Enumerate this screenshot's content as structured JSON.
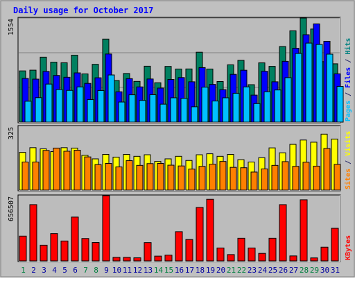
{
  "chart_data": [
    {
      "type": "bar",
      "title": "Daily usage for October 2017",
      "ylabel_parts": [
        {
          "text": "Pages",
          "color": "#00c0ff"
        },
        {
          "text": " / ",
          "color": "#2a2a6a"
        },
        {
          "text": "Files",
          "color": "#0000ff"
        },
        {
          "text": " / ",
          "color": "#2a2a6a"
        },
        {
          "text": "Hits",
          "color": "#008080"
        }
      ],
      "ymax_label": "1554",
      "ylim": [
        0,
        1554
      ],
      "categories": [
        "1",
        "2",
        "3",
        "4",
        "5",
        "6",
        "7",
        "8",
        "9",
        "10",
        "11",
        "12",
        "13",
        "14",
        "15",
        "16",
        "17",
        "18",
        "19",
        "20",
        "21",
        "22",
        "23",
        "24",
        "25",
        "26",
        "27",
        "28",
        "29",
        "30",
        "31"
      ],
      "series": [
        {
          "name": "Hits",
          "color": "#008060",
          "values": [
            765,
            776,
            970,
            895,
            886,
            1000,
            720,
            863,
            1240,
            621,
            726,
            608,
            835,
            588,
            832,
            793,
            794,
            1044,
            793,
            606,
            856,
            922,
            559,
            885,
            833,
            1129,
            1364,
            1554,
            1390,
            903,
            871
          ]
        },
        {
          "name": "Files",
          "color": "#0000ff",
          "values": [
            652,
            642,
            757,
            697,
            670,
            735,
            578,
            662,
            1017,
            453,
            649,
            526,
            644,
            508,
            637,
            665,
            602,
            814,
            563,
            485,
            713,
            775,
            403,
            759,
            602,
            908,
            1103,
            1305,
            1467,
            1207,
            721
          ]
        },
        {
          "name": "Pages",
          "color": "#00c0ff",
          "values": [
            312,
            365,
            568,
            486,
            474,
            526,
            336,
            472,
            704,
            300,
            408,
            324,
            409,
            268,
            363,
            355,
            229,
            522,
            315,
            363,
            431,
            526,
            277,
            453,
            480,
            664,
            1025,
            1180,
            1159,
            1015,
            533
          ]
        }
      ]
    },
    {
      "type": "bar",
      "ylabel_parts": [
        {
          "text": "Sites",
          "color": "#ff8000"
        },
        {
          "text": " / ",
          "color": "#2a2a6a"
        },
        {
          "text": "Visits",
          "color": "#ffff00"
        }
      ],
      "ymax_label": "325",
      "ylim": [
        0,
        325
      ],
      "categories": [
        "1",
        "2",
        "3",
        "4",
        "5",
        "6",
        "7",
        "8",
        "9",
        "10",
        "11",
        "12",
        "13",
        "14",
        "15",
        "16",
        "17",
        "18",
        "19",
        "20",
        "21",
        "22",
        "23",
        "24",
        "25",
        "26",
        "27",
        "28",
        "29",
        "30",
        "31"
      ],
      "series": [
        {
          "name": "Visits",
          "color": "#ffff00",
          "values": [
            192,
            216,
            210,
            196,
            216,
            214,
            177,
            159,
            182,
            168,
            182,
            172,
            180,
            146,
            159,
            172,
            151,
            180,
            185,
            172,
            182,
            155,
            143,
            165,
            215,
            190,
            233,
            255,
            244,
            285,
            260
          ]
        },
        {
          "name": "Sites",
          "color": "#ff8000",
          "values": [
            143,
            143,
            202,
            214,
            198,
            203,
            169,
            130,
            136,
            118,
            150,
            126,
            135,
            136,
            127,
            123,
            107,
            121,
            132,
            146,
            116,
            114,
            92,
            108,
            126,
            145,
            121,
            142,
            122,
            212,
            131
          ]
        }
      ]
    },
    {
      "type": "bar",
      "ylabel_parts": [
        {
          "text": "KBytes",
          "color": "#ff0000"
        }
      ],
      "ymax_label": "656507",
      "ylim": [
        0,
        656507
      ],
      "categories": [
        "1",
        "2",
        "3",
        "4",
        "5",
        "6",
        "7",
        "8",
        "9",
        "10",
        "11",
        "12",
        "13",
        "14",
        "15",
        "16",
        "17",
        "18",
        "19",
        "20",
        "21",
        "22",
        "23",
        "24",
        "25",
        "26",
        "27",
        "28",
        "29",
        "30",
        "31"
      ],
      "series": [
        {
          "name": "KBytes",
          "color": "#ff0000",
          "values": [
            249360,
            566200,
            157940,
            274800,
            200100,
            441010,
            225180,
            184850,
            656507,
            35400,
            35100,
            31000,
            184000,
            48000,
            58000,
            294000,
            215000,
            538000,
            620000,
            130000,
            63500,
            228000,
            130000,
            75500,
            228000,
            566000,
            50000,
            615000,
            30000,
            138000,
            328000
          ]
        }
      ]
    }
  ],
  "weekend_days": [
    "1",
    "7",
    "8",
    "14",
    "15",
    "21",
    "22",
    "28",
    "29"
  ],
  "colors": {
    "background": "#ffffff",
    "frame": "#c0c0c0",
    "plot_bg": "#bcbcbc",
    "title": "#0000ff",
    "weekday_label": "#0000a0",
    "weekend_label": "#008040",
    "gridline": "#808080"
  }
}
